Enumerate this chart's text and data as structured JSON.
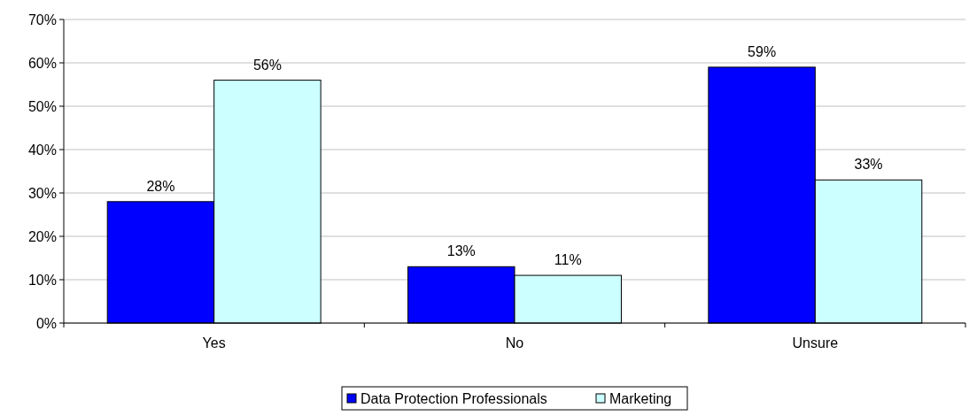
{
  "chart_data": {
    "type": "bar",
    "categories": [
      "Yes",
      "No",
      "Unsure"
    ],
    "series": [
      {
        "name": "Data Protection Professionals",
        "color": "#0000ff",
        "values": [
          28,
          13,
          59
        ],
        "value_labels": [
          "28%",
          "13%",
          "59%"
        ]
      },
      {
        "name": "Marketing",
        "color": "#ccffff",
        "values": [
          56,
          11,
          33
        ],
        "value_labels": [
          "56%",
          "11%",
          "33%"
        ]
      }
    ],
    "ylim": [
      0,
      70
    ],
    "yticks": [
      {
        "value": 0,
        "label": "0%"
      },
      {
        "value": 10,
        "label": "10%"
      },
      {
        "value": 20,
        "label": "20%"
      },
      {
        "value": 30,
        "label": "30%"
      },
      {
        "value": 40,
        "label": "40%"
      },
      {
        "value": 50,
        "label": "50%"
      },
      {
        "value": 60,
        "label": "60%"
      },
      {
        "value": 70,
        "label": "70%"
      }
    ],
    "grid": "y",
    "legend": "bottom"
  }
}
